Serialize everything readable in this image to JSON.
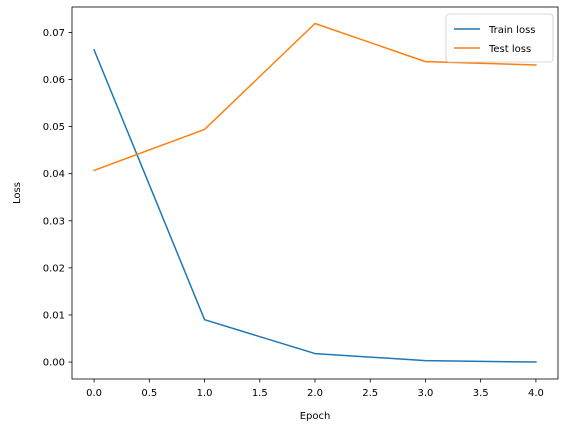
{
  "chart_data": {
    "type": "line",
    "title": "",
    "xlabel": "Epoch",
    "ylabel": "Loss",
    "xlim": [
      -0.2,
      4.2
    ],
    "ylim": [
      -0.0036,
      0.0754
    ],
    "xticks": [
      0.0,
      0.5,
      1.0,
      1.5,
      2.0,
      2.5,
      3.0,
      3.5,
      4.0
    ],
    "xtick_labels": [
      "0.0",
      "0.5",
      "1.0",
      "1.5",
      "2.0",
      "2.5",
      "3.0",
      "3.5",
      "4.0"
    ],
    "yticks": [
      0.0,
      0.01,
      0.02,
      0.03,
      0.04,
      0.05,
      0.06,
      0.07
    ],
    "ytick_labels": [
      "0.00",
      "0.01",
      "0.02",
      "0.03",
      "0.04",
      "0.05",
      "0.06",
      "0.07"
    ],
    "grid": false,
    "legend_position": "top-right",
    "x": [
      0,
      1,
      2,
      3,
      4
    ],
    "series": [
      {
        "name": "Train loss",
        "color": "#1f77b4",
        "values": [
          0.0663,
          0.009,
          0.0018,
          0.0003,
          0.0
        ]
      },
      {
        "name": "Test loss",
        "color": "#ff7f0e",
        "values": [
          0.0407,
          0.0494,
          0.0719,
          0.0638,
          0.0631
        ]
      }
    ]
  }
}
